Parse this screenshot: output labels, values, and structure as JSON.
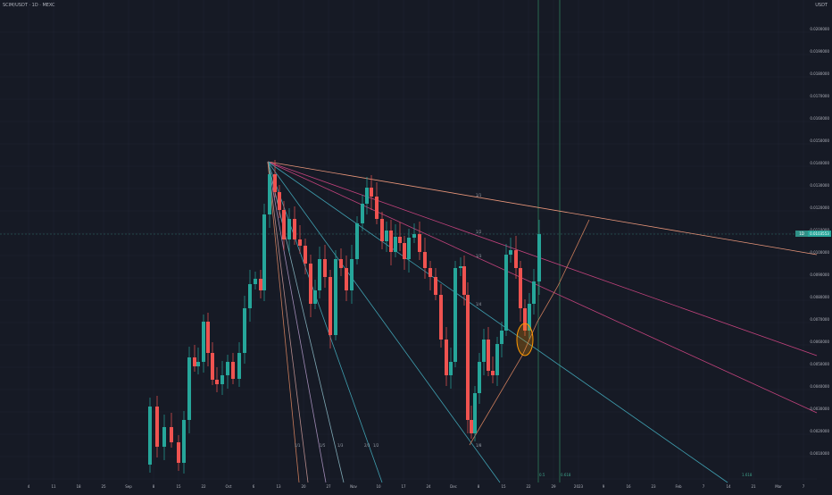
{
  "header": {
    "symbol_line": "SCIM/USDT · 1D · MEXC",
    "currency": "USDT"
  },
  "price_axis": {
    "labels": [
      "0.0200000",
      "0.0190000",
      "0.0180000",
      "0.0170000",
      "0.0160000",
      "0.0150000",
      "0.0140000",
      "0.0130000",
      "0.0120000",
      "0.0110000",
      "0.0100000",
      "0.0090000",
      "0.0080000",
      "0.0070000",
      "0.0060000",
      "0.0050000",
      "0.0040000",
      "0.0030000",
      "0.0020000",
      "0.0010000"
    ],
    "current_price": "0.0103553",
    "current_price_tag": "1D"
  },
  "time_axis": {
    "labels": [
      "4",
      "11",
      "18",
      "25",
      "Sep",
      "8",
      "15",
      "22",
      "Oct",
      "6",
      "13",
      "20",
      "27",
      "Nov",
      "10",
      "17",
      "24",
      "Dec",
      "8",
      "15",
      "22",
      "29",
      "2023",
      "9",
      "16",
      "23",
      "Feb",
      "7",
      "14",
      "21",
      "Mar",
      "7"
    ]
  },
  "annotations": {
    "fan_labels": [
      "1/1",
      "1/2",
      "1/3",
      "1/4",
      "1/8",
      "1/5",
      "1/3",
      "2/3",
      "1/2",
      "1/1"
    ],
    "vertical_tags": [
      "0.5",
      "0.618",
      "1.618"
    ]
  },
  "colors": {
    "background": "#161a25",
    "grid": "#1f2433",
    "up": "#26a69a",
    "down": "#ef5350",
    "fan_orange": "#c97b5a",
    "fan_pink": "#c2427c",
    "fan_teal": "#3f9fb0",
    "vline": "#2e7d5a"
  },
  "chart_data": {
    "type": "candlestick",
    "candle_count": 120,
    "trend": "rally from Sep to an October peak, decline into a late-November low, rebound through December to 0.0103553"
  }
}
